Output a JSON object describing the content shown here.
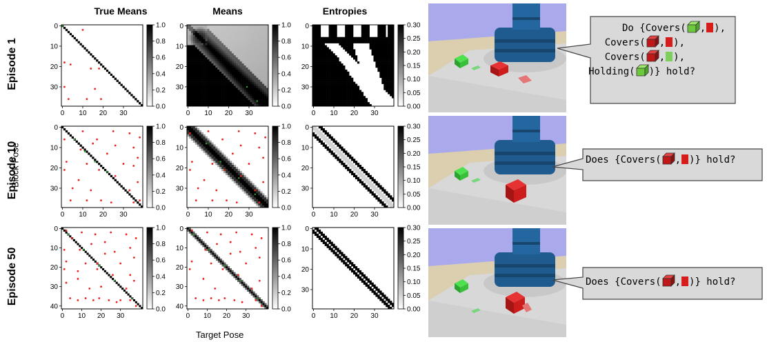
{
  "column_titles": [
    "True Means",
    "Means",
    "Entropies"
  ],
  "row_labels": [
    "Episode 1",
    "Episode 10",
    "Episode 50"
  ],
  "ylabel": "Block Pose",
  "xlabel": "Target Pose",
  "chart_data": [
    {
      "type": "heatmap",
      "panel": "True Means / Episode 1",
      "grid": 40,
      "pattern": "diagonal",
      "colorbar": {
        "min": 0,
        "max": 1,
        "ticks": [
          "0.0",
          "0.2",
          "0.4",
          "0.6",
          "0.8",
          "1.0"
        ]
      },
      "xticks": [
        "0",
        "10",
        "20",
        "30"
      ],
      "yticks": [
        "0",
        "10",
        "20",
        "30"
      ],
      "red_points": [
        [
          10,
          2
        ],
        [
          1,
          18
        ],
        [
          4,
          19
        ],
        [
          14,
          21
        ],
        [
          18,
          21
        ],
        [
          1,
          30
        ],
        [
          16,
          31
        ],
        [
          3,
          36
        ],
        [
          12,
          36
        ],
        [
          19,
          36
        ]
      ],
      "green_points": [
        [
          0,
          0
        ]
      ]
    },
    {
      "type": "heatmap",
      "panel": "Means / Episode 1",
      "grid": 40,
      "pattern": "smooth-means",
      "colorbar": {
        "min": 0,
        "max": 1,
        "ticks": [
          "0.0",
          "0.2",
          "0.4",
          "0.6",
          "0.8",
          "1.0"
        ]
      },
      "xticks": [
        "0",
        "10",
        "20",
        "30"
      ],
      "yticks": [
        "0",
        "10",
        "20",
        "30"
      ],
      "green_points": [
        [
          29,
          30
        ],
        [
          34,
          37
        ]
      ]
    },
    {
      "type": "heatmap",
      "panel": "Entropies / Episode 1",
      "grid": 40,
      "pattern": "entropy-branches",
      "colorbar": {
        "min": 0,
        "max": 0.3,
        "ticks": [
          "0.00",
          "0.05",
          "0.10",
          "0.15",
          "0.20",
          "0.25",
          "0.30"
        ]
      },
      "xticks": [
        "0",
        "10",
        "20",
        "30"
      ],
      "yticks": [
        "0",
        "10",
        "20",
        "30"
      ]
    },
    {
      "type": "heatmap",
      "panel": "True Means / Episode 10",
      "grid": 40,
      "pattern": "diagonal",
      "colorbar": {
        "min": 0,
        "max": 1,
        "ticks": [
          "0.0",
          "0.2",
          "0.4",
          "0.6",
          "0.8",
          "1.0"
        ]
      },
      "xticks": [
        "0",
        "10",
        "20",
        "30"
      ],
      "yticks": [
        "0",
        "10",
        "20",
        "30"
      ],
      "red_points": [
        [
          10,
          2
        ],
        [
          25,
          2
        ],
        [
          33,
          3
        ],
        [
          1,
          6
        ],
        [
          17,
          6
        ],
        [
          38,
          5
        ],
        [
          15,
          8
        ],
        [
          26,
          9
        ],
        [
          35,
          10
        ],
        [
          9,
          11
        ],
        [
          22,
          13
        ],
        [
          37,
          15
        ],
        [
          2,
          17
        ],
        [
          12,
          18
        ],
        [
          30,
          18
        ],
        [
          35,
          19
        ],
        [
          1,
          21
        ],
        [
          18,
          21
        ],
        [
          26,
          24
        ],
        [
          8,
          26
        ],
        [
          37,
          27
        ],
        [
          5,
          30
        ],
        [
          14,
          31
        ],
        [
          33,
          31
        ],
        [
          4,
          36
        ],
        [
          12,
          36
        ],
        [
          19,
          36
        ],
        [
          24,
          37
        ],
        [
          35,
          37
        ],
        [
          38,
          36
        ]
      ],
      "green_points": [
        [
          6,
          6
        ],
        [
          11,
          12
        ],
        [
          16,
          17
        ],
        [
          22,
          22
        ]
      ]
    },
    {
      "type": "heatmap",
      "panel": "Means / Episode 10",
      "grid": 40,
      "pattern": "band",
      "colorbar": {
        "min": 0,
        "max": 1,
        "ticks": [
          "0.0",
          "0.2",
          "0.4",
          "0.6",
          "0.8",
          "1.0"
        ]
      },
      "xticks": [
        "0",
        "10",
        "20",
        "30"
      ],
      "yticks": [
        "0",
        "10",
        "20",
        "30"
      ],
      "red_points": [
        [
          1,
          3
        ],
        [
          10,
          2
        ],
        [
          25,
          2
        ],
        [
          33,
          3
        ],
        [
          38,
          5
        ],
        [
          17,
          6
        ],
        [
          26,
          9
        ],
        [
          35,
          10
        ],
        [
          22,
          13
        ],
        [
          37,
          15
        ],
        [
          2,
          17
        ],
        [
          12,
          18
        ],
        [
          30,
          18
        ],
        [
          1,
          21
        ],
        [
          18,
          21
        ],
        [
          26,
          24
        ],
        [
          8,
          26
        ],
        [
          37,
          27
        ],
        [
          5,
          30
        ],
        [
          14,
          31
        ],
        [
          33,
          31
        ],
        [
          4,
          36
        ],
        [
          12,
          36
        ],
        [
          19,
          36
        ],
        [
          24,
          37
        ],
        [
          35,
          37
        ]
      ],
      "green_points": [
        [
          9,
          8
        ],
        [
          16,
          17
        ],
        [
          25,
          25
        ],
        [
          33,
          33
        ]
      ]
    },
    {
      "type": "heatmap",
      "panel": "Entropies / Episode 10",
      "grid": 40,
      "pattern": "band-edges",
      "colorbar": {
        "min": 0,
        "max": 0.3,
        "ticks": [
          "0.00",
          "0.05",
          "0.10",
          "0.15",
          "0.20",
          "0.25",
          "0.30"
        ]
      },
      "xticks": [
        "0",
        "10",
        "20",
        "30"
      ],
      "yticks": [
        "0",
        "10",
        "20",
        "30"
      ]
    },
    {
      "type": "heatmap",
      "panel": "True Means / Episode 50",
      "grid": 42,
      "pattern": "diagonal",
      "colorbar": {
        "min": 0,
        "max": 1,
        "ticks": [
          "0.0",
          "0.2",
          "0.4",
          "0.6",
          "0.8",
          "1.0"
        ]
      },
      "xticks": [
        "0",
        "10",
        "20",
        "30"
      ],
      "yticks": [
        "0",
        "10",
        "20",
        "30",
        "40"
      ],
      "red_points": [
        [
          2,
          1
        ],
        [
          10,
          2
        ],
        [
          17,
          3
        ],
        [
          25,
          2
        ],
        [
          33,
          3
        ],
        [
          38,
          5
        ],
        [
          5,
          5
        ],
        [
          15,
          8
        ],
        [
          22,
          7
        ],
        [
          35,
          10
        ],
        [
          1,
          11
        ],
        [
          9,
          11
        ],
        [
          27,
          12
        ],
        [
          22,
          13
        ],
        [
          37,
          15
        ],
        [
          2,
          17
        ],
        [
          12,
          18
        ],
        [
          18,
          18
        ],
        [
          30,
          18
        ],
        [
          1,
          21
        ],
        [
          8,
          22
        ],
        [
          18,
          21
        ],
        [
          26,
          24
        ],
        [
          35,
          24
        ],
        [
          8,
          26
        ],
        [
          37,
          27
        ],
        [
          2,
          28
        ],
        [
          14,
          31
        ],
        [
          20,
          30
        ],
        [
          33,
          31
        ],
        [
          4,
          36
        ],
        [
          12,
          36
        ],
        [
          19,
          36
        ],
        [
          24,
          37
        ],
        [
          30,
          37
        ],
        [
          35,
          37
        ],
        [
          38,
          40
        ],
        [
          8,
          37
        ],
        [
          16,
          37
        ],
        [
          28,
          38
        ]
      ],
      "green_points": [
        [
          3,
          3
        ],
        [
          11,
          11
        ],
        [
          19,
          19
        ],
        [
          27,
          27
        ],
        [
          36,
          36
        ]
      ]
    },
    {
      "type": "heatmap",
      "panel": "Means / Episode 50",
      "grid": 42,
      "pattern": "thin-band",
      "colorbar": {
        "min": 0,
        "max": 1,
        "ticks": [
          "0.0",
          "0.2",
          "0.4",
          "0.6",
          "0.8",
          "1.0"
        ]
      },
      "xticks": [
        "0",
        "10",
        "20",
        "30"
      ],
      "yticks": [
        "0",
        "10",
        "20",
        "30",
        "40"
      ],
      "red_points": [
        [
          2,
          1
        ],
        [
          10,
          2
        ],
        [
          17,
          3
        ],
        [
          25,
          2
        ],
        [
          33,
          3
        ],
        [
          38,
          5
        ],
        [
          15,
          8
        ],
        [
          22,
          7
        ],
        [
          35,
          10
        ],
        [
          9,
          11
        ],
        [
          27,
          12
        ],
        [
          22,
          13
        ],
        [
          37,
          15
        ],
        [
          2,
          17
        ],
        [
          12,
          18
        ],
        [
          30,
          18
        ],
        [
          1,
          21
        ],
        [
          18,
          21
        ],
        [
          26,
          24
        ],
        [
          8,
          26
        ],
        [
          37,
          27
        ],
        [
          14,
          31
        ],
        [
          33,
          31
        ],
        [
          4,
          36
        ],
        [
          12,
          36
        ],
        [
          19,
          36
        ],
        [
          24,
          37
        ],
        [
          35,
          37
        ],
        [
          8,
          37
        ],
        [
          16,
          37
        ],
        [
          28,
          38
        ],
        [
          38,
          40
        ]
      ],
      "green_points": [
        [
          3,
          3
        ],
        [
          11,
          11
        ],
        [
          19,
          19
        ],
        [
          27,
          27
        ],
        [
          36,
          36
        ]
      ]
    },
    {
      "type": "heatmap",
      "panel": "Entropies / Episode 50",
      "grid": 40,
      "pattern": "thin-edges",
      "colorbar": {
        "min": 0,
        "max": 0.3,
        "ticks": [
          "0.00",
          "0.05",
          "0.10",
          "0.15",
          "0.20",
          "0.25",
          "0.30"
        ]
      },
      "xticks": [
        "0",
        "10",
        "20",
        "30"
      ],
      "yticks": [
        "0",
        "10",
        "20",
        "30"
      ]
    }
  ],
  "queries": [
    {
      "lines": [
        {
          "prefix": "Do {Covers(",
          "b1": "green-cube",
          "b2": "red-target",
          "suffix": "),"
        },
        {
          "prefix": "Covers(",
          "b1": "red-cube",
          "b2": "red-target",
          "suffix": "),"
        },
        {
          "prefix": "Covers(",
          "b1": "red-cube",
          "b2": "green-target",
          "suffix": "),"
        },
        {
          "prefix": "Holding(",
          "b1": "green-cube",
          "b2": "",
          "suffix": ")} hold?"
        }
      ]
    },
    {
      "lines": [
        {
          "prefix": "Does {Covers(",
          "b1": "red-cube",
          "b2": "red-target",
          "suffix": ")} hold?"
        }
      ]
    },
    {
      "lines": [
        {
          "prefix": "Does {Covers(",
          "b1": "red-cube",
          "b2": "red-target",
          "suffix": ")} hold?"
        }
      ]
    }
  ],
  "colors": {
    "red_point": "#e8231f",
    "green_point": "#2fae2f",
    "robot": "#1f5b8f",
    "floor": "#d8d8d8",
    "wall": "#a9a9ec",
    "tan": "#dccfb0",
    "cube_red": "#d61c1c",
    "cube_green": "#39c43c"
  }
}
